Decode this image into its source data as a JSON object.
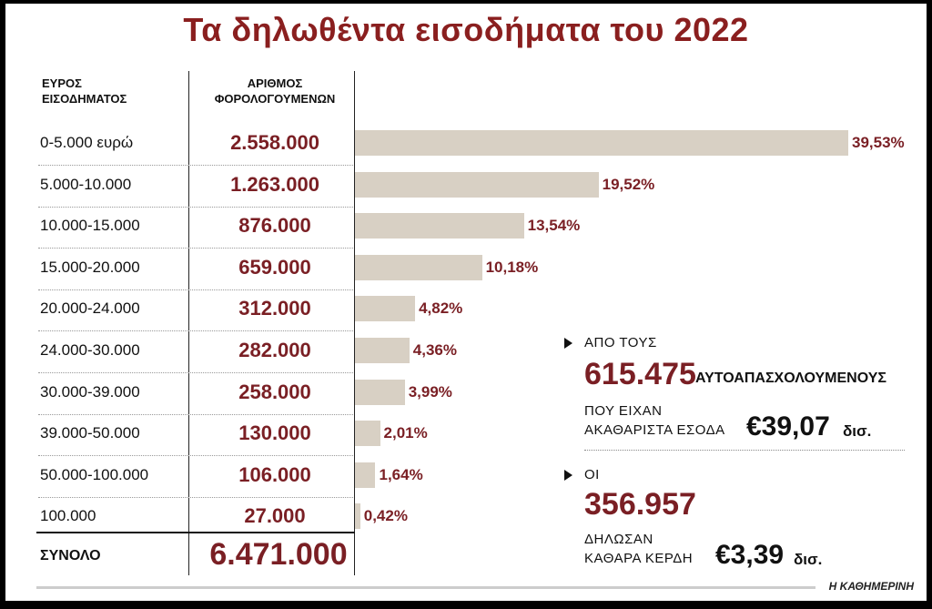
{
  "title": "Τα δηλωθέντα εισοδήματα του 2022",
  "headers": {
    "range_line1": "ΕΥΡΟΣ",
    "range_line2": "ΕΙΣΟΔΗΜΑΤΟΣ",
    "count_line1": "ΑΡΙΘΜΟΣ",
    "count_line2": "ΦΟΡΟΛΟΓΟΥΜΕΝΩΝ"
  },
  "chart_data": {
    "type": "bar",
    "orientation": "horizontal",
    "categories": [
      "0-5.000 ευρώ",
      "5.000-10.000",
      "10.000-15.000",
      "15.000-20.000",
      "20.000-24.000",
      "24.000-30.000",
      "30.000-39.000",
      "39.000-50.000",
      "50.000-100.000",
      "100.000"
    ],
    "counts": [
      "2.558.000",
      "1.263.000",
      "876.000",
      "659.000",
      "312.000",
      "282.000",
      "258.000",
      "130.000",
      "106.000",
      "27.000"
    ],
    "values": [
      39.53,
      19.52,
      13.54,
      10.18,
      4.82,
      4.36,
      3.99,
      2.01,
      1.64,
      0.42
    ],
    "value_labels": [
      "39,53%",
      "19,52%",
      "13,54%",
      "10,18%",
      "4,82%",
      "4,36%",
      "3,99%",
      "2,01%",
      "1,64%",
      "0,42%"
    ],
    "xlim": [
      0,
      39.53
    ],
    "bar_color": "#d8d0c4",
    "label_color": "#7a1f24"
  },
  "total": {
    "label": "ΣΥΝΟΛΟ",
    "value": "6.471.000"
  },
  "annotations": {
    "first": {
      "intro": "ΑΠΟ ΤΟΥΣ",
      "number": "615.475",
      "bold_text": "ΑΥΤΟΑΠΑΣΧΟΛΟΥΜΕΝΟΥΣ",
      "line1": "ΠΟΥ ΕΙΧΑΝ",
      "line2": "ΑΚΑΘΑΡΙΣΤΑ ΕΣΟΔΑ",
      "amount": "€39,07",
      "unit": "δισ."
    },
    "second": {
      "intro": "ΟΙ",
      "number": "356.957",
      "line1": "ΔΗΛΩΣΑΝ",
      "line2": "ΚΑΘΑΡΑ ΚΕΡΔΗ",
      "amount": "€3,39",
      "unit": "δισ."
    }
  },
  "brand": "Η ΚΑΘΗΜΕΡΙΝΗ",
  "colors": {
    "accent": "#7a1f24",
    "title": "#8a1f1f",
    "bar": "#d8d0c4"
  }
}
